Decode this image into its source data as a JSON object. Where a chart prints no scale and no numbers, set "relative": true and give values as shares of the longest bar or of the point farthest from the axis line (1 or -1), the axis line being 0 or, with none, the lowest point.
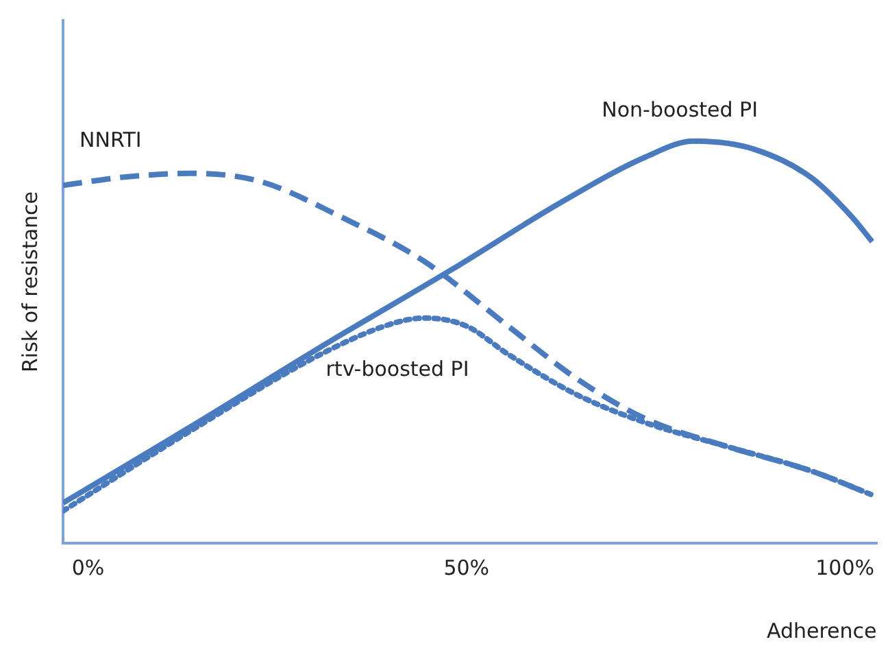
{
  "chart_data": {
    "type": "line",
    "relative": true,
    "xlabel": "Adherence",
    "ylabel": "Risk of resistance",
    "xlim": [
      -3.3,
      104.2
    ],
    "xticks": [
      {
        "value": 0,
        "label": "0%"
      },
      {
        "value": 50,
        "label": "50%"
      },
      {
        "value": 100,
        "label": "100%"
      }
    ],
    "grid": false,
    "legend": false,
    "marker": "none",
    "series": [
      {
        "name": "NNRTI",
        "color": "#4a7bbf",
        "line_style": "dashed",
        "x": [
          -3.3,
          4.5,
          13.6,
          22.7,
          33.6,
          44.5,
          55.5,
          64.5,
          73.6,
          84.5,
          95.5,
          103.6
        ],
        "values": [
          0.89,
          0.91,
          0.92,
          0.9,
          0.81,
          0.7,
          0.54,
          0.41,
          0.31,
          0.24,
          0.18,
          0.12
        ]
      },
      {
        "name": "Non-boosted PI",
        "color": "#4a7bbf",
        "line_style": "solid",
        "x": [
          -3.3,
          13.6,
          31.8,
          48,
          62.7,
          73.6,
          80,
          88,
          95.5,
          101,
          103.6
        ],
        "values": [
          0.1,
          0.29,
          0.5,
          0.68,
          0.85,
          0.96,
          1,
          0.98,
          0.91,
          0.81,
          0.75
        ]
      },
      {
        "name": "rtv-boosted PI",
        "color": "#4a7bbf",
        "line_style": "dotted",
        "x": [
          -3.3,
          13.6,
          31.8,
          40.9,
          44.5,
          50,
          55.5,
          64.5,
          73.6,
          84.5,
          95.5,
          103.6
        ],
        "values": [
          0.08,
          0.28,
          0.48,
          0.55,
          0.56,
          0.54,
          0.47,
          0.37,
          0.3,
          0.24,
          0.18,
          0.12
        ]
      }
    ]
  }
}
